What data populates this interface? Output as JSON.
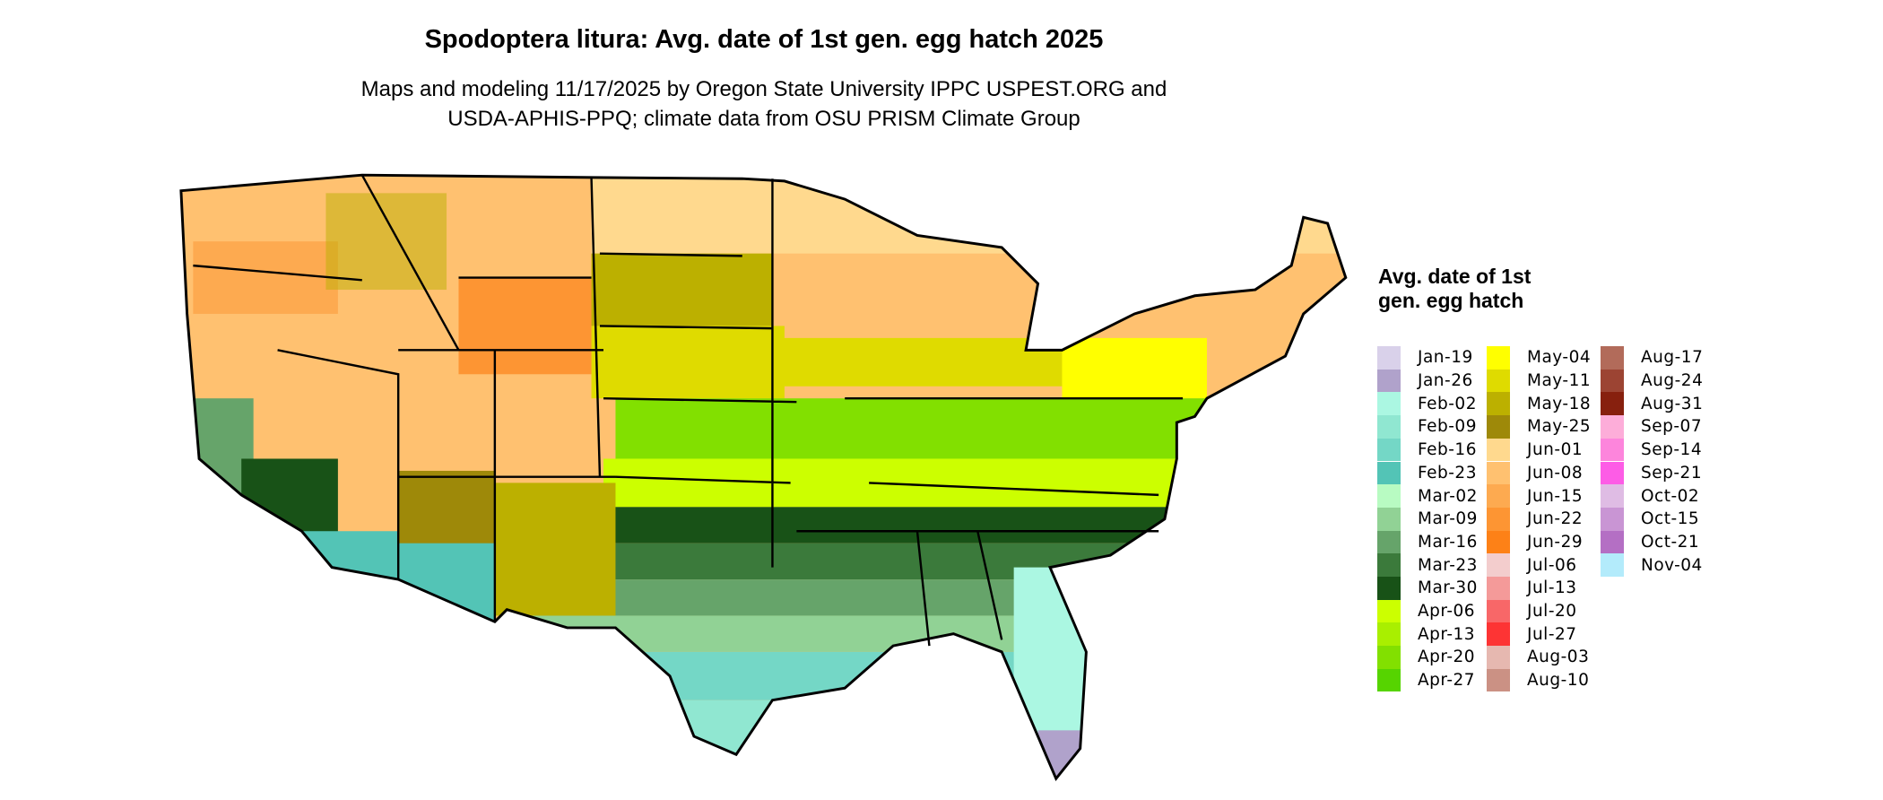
{
  "title": "Spodoptera litura: Avg. date of 1st gen. egg hatch 2025",
  "subtitle_line1": "Maps and modeling 11/17/2025 by Oregon State University IPPC USPEST.ORG and",
  "subtitle_line2": "USDA-APHIS-PPQ; climate data from OSU PRISM Climate Group",
  "legend": {
    "title": "Avg. date of 1st gen. egg hatch",
    "items": [
      {
        "label": "Jan-19",
        "color": "#d9d1ea"
      },
      {
        "label": "Jan-26",
        "color": "#b0a2cb"
      },
      {
        "label": "Feb-02",
        "color": "#abf7e2"
      },
      {
        "label": "Feb-09",
        "color": "#90e7d1"
      },
      {
        "label": "Feb-16",
        "color": "#74d7c6"
      },
      {
        "label": "Feb-23",
        "color": "#53c4b6"
      },
      {
        "label": "Mar-02",
        "color": "#b8fbc2"
      },
      {
        "label": "Mar-09",
        "color": "#91d295"
      },
      {
        "label": "Mar-16",
        "color": "#66a46a"
      },
      {
        "label": "Mar-23",
        "color": "#3b7a3b"
      },
      {
        "label": "Mar-30",
        "color": "#185217"
      },
      {
        "label": "Apr-06",
        "color": "#ccff00"
      },
      {
        "label": "Apr-13",
        "color": "#a9ef00"
      },
      {
        "label": "Apr-20",
        "color": "#82e000"
      },
      {
        "label": "Apr-27",
        "color": "#56d400"
      },
      {
        "label": "May-04",
        "color": "#ffff00"
      },
      {
        "label": "May-11",
        "color": "#dfdb00"
      },
      {
        "label": "May-18",
        "color": "#bcb000"
      },
      {
        "label": "May-25",
        "color": "#9e8909"
      },
      {
        "label": "Jun-01",
        "color": "#ffd98e"
      },
      {
        "label": "Jun-08",
        "color": "#ffc170"
      },
      {
        "label": "Jun-15",
        "color": "#fdaa50"
      },
      {
        "label": "Jun-22",
        "color": "#fd9533"
      },
      {
        "label": "Jun-29",
        "color": "#fd8117"
      },
      {
        "label": "Jul-06",
        "color": "#f3cdcd"
      },
      {
        "label": "Jul-13",
        "color": "#f49a99"
      },
      {
        "label": "Jul-20",
        "color": "#f86768"
      },
      {
        "label": "Jul-27",
        "color": "#fd3434"
      },
      {
        "label": "Aug-03",
        "color": "#e6b8b0"
      },
      {
        "label": "Aug-10",
        "color": "#cb9184"
      },
      {
        "label": "Aug-17",
        "color": "#b26b5a"
      },
      {
        "label": "Aug-24",
        "color": "#9c4433"
      },
      {
        "label": "Aug-31",
        "color": "#87200e"
      },
      {
        "label": "Sep-07",
        "color": "#fdadd9"
      },
      {
        "label": "Sep-14",
        "color": "#fd85dc"
      },
      {
        "label": "Sep-21",
        "color": "#fd5ce6"
      },
      {
        "label": "Oct-02",
        "color": "#dfbce4"
      },
      {
        "label": "Oct-15",
        "color": "#c995d4"
      },
      {
        "label": "Oct-21",
        "color": "#b46fc4"
      },
      {
        "label": "Nov-04",
        "color": "#b3ebfb"
      }
    ]
  }
}
